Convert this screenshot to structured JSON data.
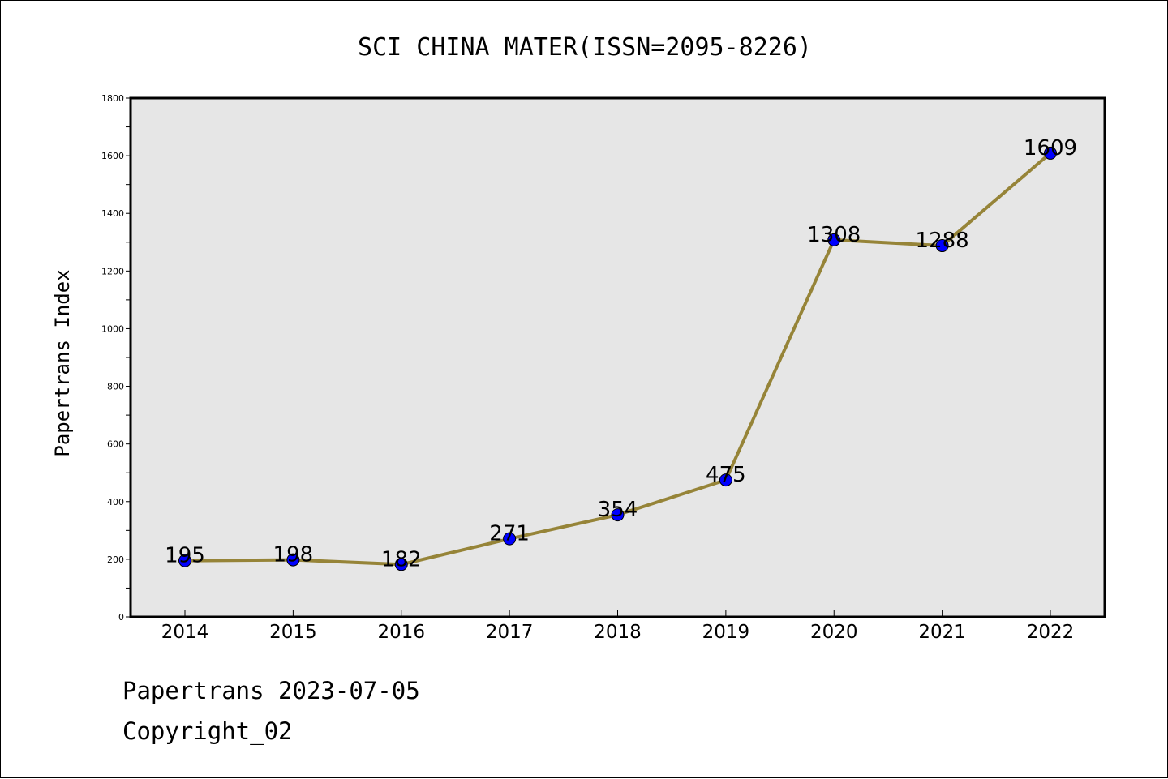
{
  "chart_data": {
    "type": "line",
    "title": "SCI CHINA MATER(ISSN=2095-8226)",
    "xlabel": "",
    "ylabel": "Papertrans Index",
    "categories": [
      "2014",
      "2015",
      "2016",
      "2017",
      "2018",
      "2019",
      "2020",
      "2021",
      "2022"
    ],
    "series": [
      {
        "values": [
          195,
          198,
          182,
          271,
          354,
          475,
          1308,
          1288,
          1609
        ]
      }
    ],
    "ylim": [
      0,
      1800
    ],
    "yticks": [
      0,
      200,
      400,
      600,
      800,
      1000,
      1200,
      1400,
      1600,
      1800
    ],
    "ytick_labels": [
      "0",
      "200",
      "400",
      "600",
      "800",
      "1000",
      "1200",
      "1400",
      "1600",
      "1800"
    ],
    "grid": false,
    "data_labels": true,
    "colors": {
      "line": "#968438",
      "marker": "#0000ff",
      "plot_background": "#e6e6e6"
    }
  },
  "footer": {
    "date_text": "Papertrans 2023-07-05",
    "copyright_text": "Copyright_02"
  }
}
